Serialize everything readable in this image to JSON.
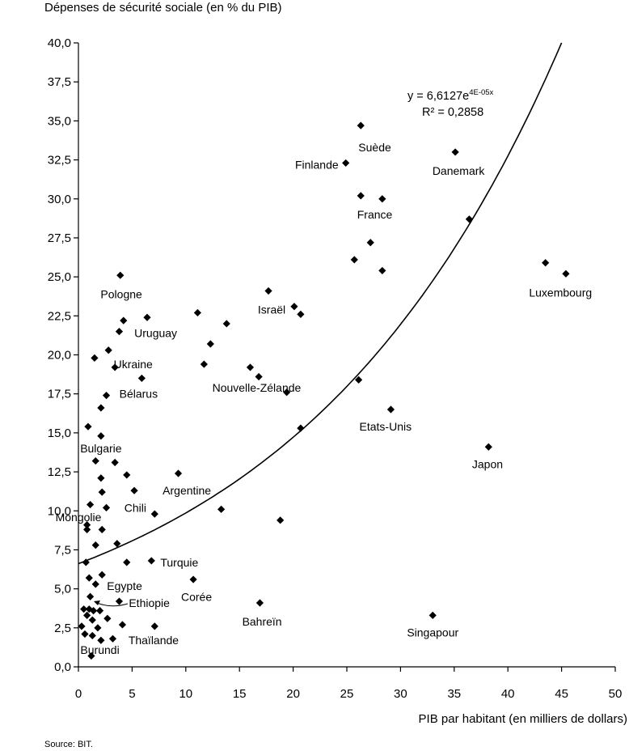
{
  "chart_data": {
    "type": "scatter",
    "ylabel": "Dépenses de sécurité sociale (en % du PIB)",
    "xlabel": "PIB par habitant (en milliers de dollars)",
    "xlim": [
      0,
      50
    ],
    "ylim": [
      0,
      40
    ],
    "xticks": [
      0,
      5,
      10,
      15,
      20,
      25,
      30,
      35,
      40,
      45,
      50
    ],
    "yticks": [
      0,
      2.5,
      5,
      7.5,
      10,
      12.5,
      15,
      17.5,
      20,
      22.5,
      25,
      27.5,
      30,
      32.5,
      35,
      37.5,
      40
    ],
    "xtick_labels": [
      "0",
      "5",
      "10",
      "15",
      "20",
      "25",
      "30",
      "35",
      "40",
      "45",
      "50"
    ],
    "ytick_labels": [
      "0,0",
      "2,5",
      "5,0",
      "7,5",
      "10,0",
      "12,5",
      "15,0",
      "17,5",
      "20,0",
      "22,5",
      "25,0",
      "27,5",
      "30,0",
      "32,5",
      "35,0",
      "37,5",
      "40,0"
    ],
    "grid": false,
    "trendline": {
      "equation": "y = 6,6127e",
      "exponent": "4E-05x",
      "r2": "R² = 0,2858",
      "a": 6.6127,
      "b": 4e-05,
      "x_range": [
        0,
        45
      ]
    },
    "points": [
      {
        "x": 26.3,
        "y": 34.7
      },
      {
        "x": 24.9,
        "y": 32.3
      },
      {
        "x": 35.1,
        "y": 33.0
      },
      {
        "x": 26.3,
        "y": 30.2
      },
      {
        "x": 28.3,
        "y": 30.0
      },
      {
        "x": 36.4,
        "y": 28.7
      },
      {
        "x": 27.2,
        "y": 27.2
      },
      {
        "x": 25.7,
        "y": 26.1
      },
      {
        "x": 28.3,
        "y": 25.4
      },
      {
        "x": 43.5,
        "y": 25.9
      },
      {
        "x": 45.4,
        "y": 25.2
      },
      {
        "x": 3.9,
        "y": 25.1
      },
      {
        "x": 17.7,
        "y": 24.1
      },
      {
        "x": 20.1,
        "y": 23.1
      },
      {
        "x": 20.7,
        "y": 22.6
      },
      {
        "x": 11.1,
        "y": 22.7
      },
      {
        "x": 6.4,
        "y": 22.4
      },
      {
        "x": 4.2,
        "y": 22.2
      },
      {
        "x": 13.8,
        "y": 22.0
      },
      {
        "x": 3.8,
        "y": 21.5
      },
      {
        "x": 12.3,
        "y": 20.7
      },
      {
        "x": 2.8,
        "y": 20.3
      },
      {
        "x": 1.5,
        "y": 19.8
      },
      {
        "x": 11.7,
        "y": 19.4
      },
      {
        "x": 3.4,
        "y": 19.2
      },
      {
        "x": 16.0,
        "y": 19.2
      },
      {
        "x": 16.8,
        "y": 18.6
      },
      {
        "x": 5.9,
        "y": 18.5
      },
      {
        "x": 26.1,
        "y": 18.4
      },
      {
        "x": 19.4,
        "y": 17.6
      },
      {
        "x": 2.6,
        "y": 17.4
      },
      {
        "x": 2.1,
        "y": 16.6
      },
      {
        "x": 29.1,
        "y": 16.5
      },
      {
        "x": 0.9,
        "y": 15.4
      },
      {
        "x": 20.7,
        "y": 15.3
      },
      {
        "x": 2.1,
        "y": 14.8
      },
      {
        "x": 38.2,
        "y": 14.1
      },
      {
        "x": 1.6,
        "y": 13.2
      },
      {
        "x": 3.4,
        "y": 13.1
      },
      {
        "x": 9.3,
        "y": 12.4
      },
      {
        "x": 2.1,
        "y": 12.1
      },
      {
        "x": 4.5,
        "y": 12.3
      },
      {
        "x": 2.2,
        "y": 11.2
      },
      {
        "x": 5.2,
        "y": 11.3
      },
      {
        "x": 1.1,
        "y": 10.4
      },
      {
        "x": 2.6,
        "y": 10.2
      },
      {
        "x": 13.3,
        "y": 10.1
      },
      {
        "x": 7.1,
        "y": 9.8
      },
      {
        "x": 18.8,
        "y": 9.4
      },
      {
        "x": 0.8,
        "y": 9.1
      },
      {
        "x": 0.8,
        "y": 8.8
      },
      {
        "x": 2.2,
        "y": 8.8
      },
      {
        "x": 3.6,
        "y": 7.9
      },
      {
        "x": 1.6,
        "y": 7.8
      },
      {
        "x": 6.8,
        "y": 6.8
      },
      {
        "x": 0.7,
        "y": 6.7
      },
      {
        "x": 4.5,
        "y": 6.7
      },
      {
        "x": 2.2,
        "y": 5.9
      },
      {
        "x": 10.7,
        "y": 5.6
      },
      {
        "x": 1.0,
        "y": 5.7
      },
      {
        "x": 1.6,
        "y": 5.3
      },
      {
        "x": 1.1,
        "y": 4.5
      },
      {
        "x": 3.8,
        "y": 4.2
      },
      {
        "x": 16.9,
        "y": 4.1
      },
      {
        "x": 0.5,
        "y": 3.7
      },
      {
        "x": 1.0,
        "y": 3.7
      },
      {
        "x": 1.4,
        "y": 3.6
      },
      {
        "x": 2.0,
        "y": 3.6
      },
      {
        "x": 0.8,
        "y": 3.3
      },
      {
        "x": 2.7,
        "y": 3.1
      },
      {
        "x": 33.0,
        "y": 3.3
      },
      {
        "x": 1.3,
        "y": 3.0
      },
      {
        "x": 0.3,
        "y": 2.6
      },
      {
        "x": 1.8,
        "y": 2.5
      },
      {
        "x": 4.1,
        "y": 2.7
      },
      {
        "x": 7.1,
        "y": 2.6
      },
      {
        "x": 0.6,
        "y": 2.1
      },
      {
        "x": 1.3,
        "y": 2.0
      },
      {
        "x": 2.1,
        "y": 1.7
      },
      {
        "x": 3.2,
        "y": 1.8
      },
      {
        "x": 1.2,
        "y": 0.7
      }
    ],
    "annotations": [
      {
        "text": "Suède",
        "x": 27.6,
        "y": 33.3
      },
      {
        "text": "Finlande",
        "x": 22.2,
        "y": 32.2
      },
      {
        "text": "Danemark",
        "x": 35.4,
        "y": 31.8
      },
      {
        "text": "France",
        "x": 27.6,
        "y": 29.0
      },
      {
        "text": "Pologne",
        "x": 4.0,
        "y": 23.9
      },
      {
        "text": "Luxembourg",
        "x": 44.9,
        "y": 24.0
      },
      {
        "text": "Israël",
        "x": 18.0,
        "y": 22.9
      },
      {
        "text": "Uruguay",
        "x": 7.2,
        "y": 21.4
      },
      {
        "text": "Ukraine",
        "x": 5.1,
        "y": 19.4
      },
      {
        "text": "Bélarus",
        "x": 5.6,
        "y": 17.5
      },
      {
        "text": "Nouvelle-Zélande",
        "x": 16.6,
        "y": 17.9
      },
      {
        "text": "Etats-Unis",
        "x": 28.6,
        "y": 15.4
      },
      {
        "text": "Bulgarie",
        "x": 2.1,
        "y": 14.0
      },
      {
        "text": "Japon",
        "x": 38.1,
        "y": 13.0
      },
      {
        "text": "Argentine",
        "x": 10.1,
        "y": 11.3
      },
      {
        "text": "Chili",
        "x": 5.3,
        "y": 10.2
      },
      {
        "text": "Mongolie",
        "x": 0.0,
        "y": 9.6
      },
      {
        "text": "Turquie",
        "x": 9.4,
        "y": 6.7
      },
      {
        "text": "Egypte",
        "x": 4.3,
        "y": 5.2
      },
      {
        "text": "Ethiopie",
        "x": 6.6,
        "y": 4.1
      },
      {
        "text": "Corée",
        "x": 11.0,
        "y": 4.5
      },
      {
        "text": "Bahreïn",
        "x": 17.1,
        "y": 2.9
      },
      {
        "text": "Singapour",
        "x": 33.0,
        "y": 2.2
      },
      {
        "text": "Thaïlande",
        "x": 7.0,
        "y": 1.7
      },
      {
        "text": "Burundi",
        "x": 2.0,
        "y": 1.1
      }
    ]
  },
  "source_text": "Source: BIT."
}
